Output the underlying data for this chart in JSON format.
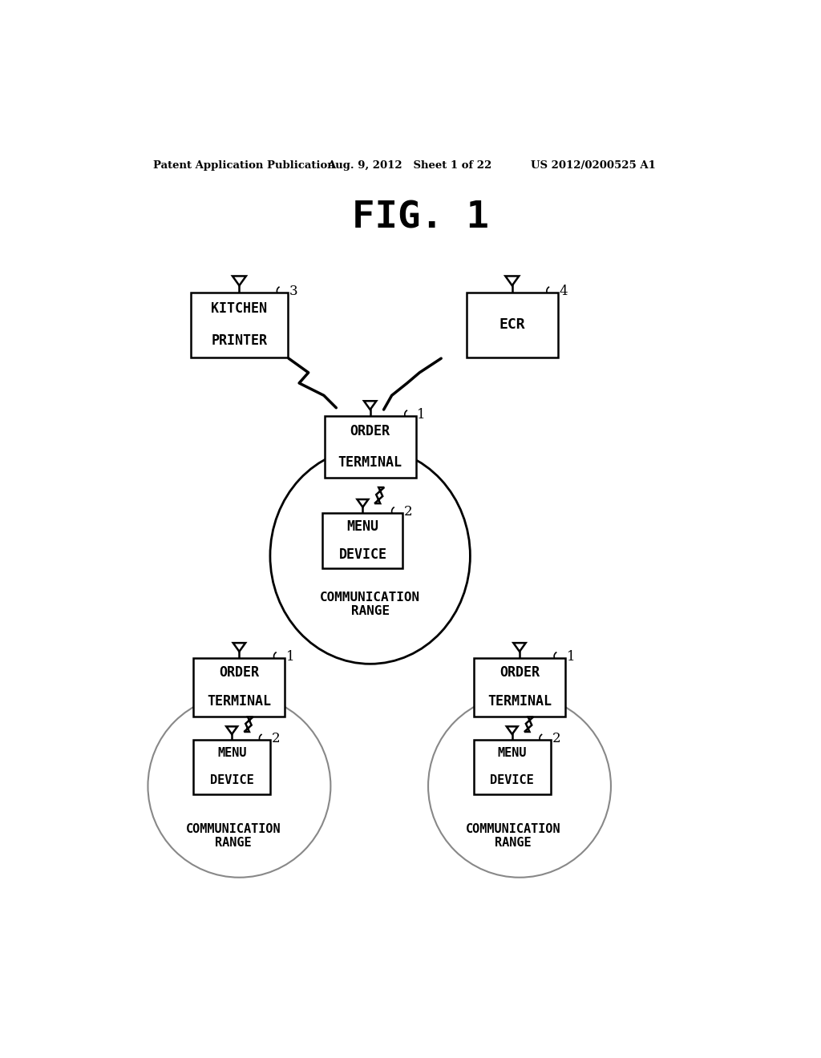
{
  "header_left": "Patent Application Publication",
  "header_mid": "Aug. 9, 2012   Sheet 1 of 22",
  "header_right": "US 2012/0200525 A1",
  "title": "FIG. 1",
  "bg_color": "#ffffff",
  "line_color": "#000000"
}
